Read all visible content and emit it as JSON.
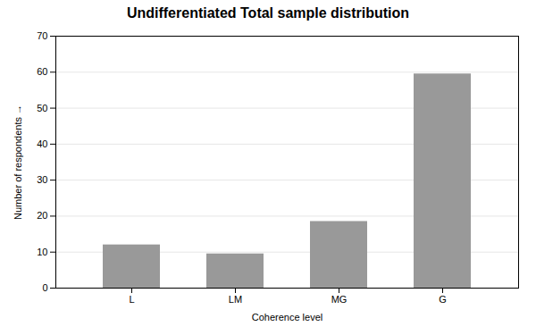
{
  "chart_data": {
    "type": "bar",
    "title": "Undifferentiated Total sample distribution",
    "categories": [
      "L",
      "LM",
      "MG",
      "G"
    ],
    "values": [
      12,
      9.5,
      18.5,
      59.5
    ],
    "color": "#999999",
    "xlabel": "Coherence level",
    "ylabel": "Number of respondents",
    "ylim": [
      0,
      70
    ],
    "yticks": [
      0,
      10,
      20,
      30,
      40,
      50,
      60,
      70
    ],
    "grid": true
  }
}
